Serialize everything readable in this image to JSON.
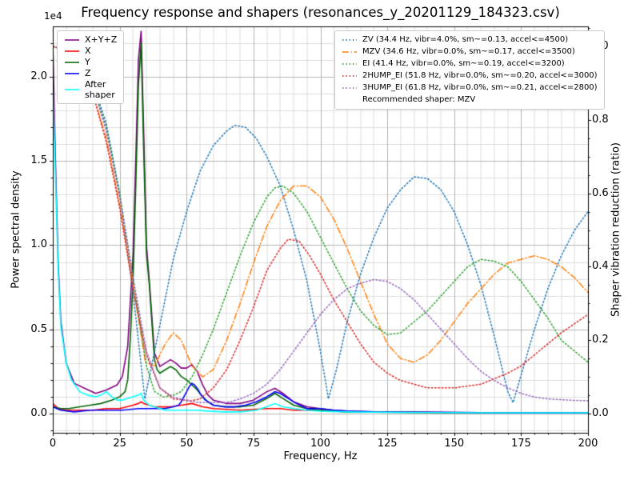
{
  "title": "Frequency response and shapers (resonances_y_20201129_184323.csv)",
  "offset_label": "1e4",
  "xlabel": "Frequency, Hz",
  "ylabel_left": "Power spectral density",
  "ylabel_right": "Shaper vibration reduction (ratio)",
  "legend_psd": [
    {
      "label": "X+Y+Z",
      "color": "#800080",
      "dash": "solid"
    },
    {
      "label": "X",
      "color": "#ff0000",
      "dash": "solid"
    },
    {
      "label": "Y",
      "color": "#006400",
      "dash": "solid"
    },
    {
      "label": "Z",
      "color": "#0000ff",
      "dash": "solid"
    },
    {
      "label": "After\nshaper",
      "color": "#00ffff",
      "dash": "solid"
    }
  ],
  "legend_shapers_footer": "Recommended shaper: MZV",
  "chart_data": {
    "type": "line",
    "xlim": [
      0,
      200
    ],
    "ylim_left": [
      -0.114,
      2.299
    ],
    "ylim_right": [
      -0.0523,
      1.0546
    ],
    "xticks": [
      0,
      25,
      50,
      75,
      100,
      125,
      150,
      175,
      200
    ],
    "xtick_labels": [
      "0",
      "25",
      "50",
      "75",
      "100",
      "125",
      "150",
      "175",
      "200"
    ],
    "yticks_left": [
      0.0,
      0.5,
      1.0,
      1.5,
      2.0
    ],
    "ytick_labels_left": [
      "0.0",
      "0.5",
      "1.0",
      "1.5",
      "2.0"
    ],
    "yticks_right": [
      0.0,
      0.2,
      0.4,
      0.6,
      0.8,
      1.0
    ],
    "ytick_labels_right": [
      "0.0",
      "0.2",
      "0.4",
      "0.6",
      "0.8",
      "1.0"
    ],
    "grid": {
      "x_minor_step": 5,
      "y_minor_step_left": 0.1,
      "y_minor_step_right": 0.05
    },
    "psd_unit_scale": "1e4",
    "psd_series": [
      {
        "name": "X+Y+Z",
        "label": "X+Y+Z",
        "color": "#800080",
        "dash": "solid",
        "x": [
          0,
          1,
          2,
          3,
          5,
          8,
          12,
          16,
          20,
          24,
          26,
          28,
          30,
          31,
          32,
          33,
          34,
          35,
          36,
          37,
          38,
          40,
          42,
          44,
          46,
          48,
          50,
          52,
          54,
          56,
          58,
          60,
          65,
          70,
          75,
          80,
          83,
          86,
          90,
          95,
          100,
          105,
          110,
          120,
          140,
          170,
          200
        ],
        "y": [
          2.2,
          1.5,
          0.9,
          0.55,
          0.3,
          0.18,
          0.15,
          0.12,
          0.14,
          0.17,
          0.22,
          0.4,
          0.95,
          1.5,
          2.1,
          2.27,
          1.65,
          1.0,
          0.8,
          0.58,
          0.36,
          0.28,
          0.3,
          0.32,
          0.3,
          0.27,
          0.27,
          0.29,
          0.25,
          0.17,
          0.11,
          0.08,
          0.06,
          0.06,
          0.08,
          0.13,
          0.15,
          0.12,
          0.07,
          0.04,
          0.03,
          0.02,
          0.015,
          0.01,
          0.008,
          0.005,
          0.005
        ]
      },
      {
        "name": "X",
        "label": "X",
        "color": "#ff0000",
        "dash": "solid",
        "x": [
          0,
          2,
          5,
          10,
          15,
          20,
          25,
          30,
          32,
          33,
          34,
          36,
          38,
          40,
          44,
          48,
          52,
          56,
          60,
          70,
          80,
          85,
          90,
          100,
          110,
          130,
          160,
          200
        ],
        "y": [
          0.06,
          0.03,
          0.02,
          0.02,
          0.02,
          0.03,
          0.03,
          0.05,
          0.06,
          0.07,
          0.06,
          0.05,
          0.04,
          0.04,
          0.04,
          0.05,
          0.06,
          0.04,
          0.03,
          0.02,
          0.03,
          0.03,
          0.02,
          0.02,
          0.01,
          0.008,
          0.005,
          0.005
        ]
      },
      {
        "name": "Y",
        "label": "Y",
        "color": "#006400",
        "dash": "solid",
        "x": [
          0,
          3,
          6,
          10,
          14,
          18,
          22,
          25,
          27,
          28,
          29,
          30,
          31,
          32,
          33,
          34,
          35,
          36,
          37,
          38,
          39,
          40,
          42,
          44,
          46,
          48,
          50,
          52,
          54,
          56,
          58,
          60,
          65,
          70,
          75,
          80,
          83,
          86,
          90,
          95,
          100,
          110,
          120,
          140,
          170,
          200
        ],
        "y": [
          0.04,
          0.03,
          0.03,
          0.04,
          0.05,
          0.06,
          0.08,
          0.1,
          0.13,
          0.2,
          0.45,
          0.8,
          1.35,
          1.95,
          2.2,
          1.55,
          0.95,
          0.78,
          0.55,
          0.32,
          0.26,
          0.24,
          0.26,
          0.28,
          0.26,
          0.22,
          0.2,
          0.17,
          0.14,
          0.1,
          0.07,
          0.05,
          0.04,
          0.04,
          0.05,
          0.09,
          0.12,
          0.09,
          0.05,
          0.03,
          0.02,
          0.01,
          0.008,
          0.006,
          0.005,
          0.005
        ]
      },
      {
        "name": "Z",
        "label": "Z",
        "color": "#0000ff",
        "dash": "solid",
        "x": [
          0,
          3,
          8,
          14,
          20,
          26,
          32,
          38,
          42,
          45,
          47,
          48,
          49,
          50,
          51,
          52,
          53,
          54,
          55,
          57,
          60,
          64,
          68,
          72,
          76,
          80,
          82,
          83,
          85,
          88,
          91,
          95,
          100,
          105,
          110,
          120,
          140,
          170,
          200
        ],
        "y": [
          0.04,
          0.02,
          0.01,
          0.02,
          0.02,
          0.02,
          0.03,
          0.03,
          0.03,
          0.04,
          0.05,
          0.07,
          0.1,
          0.13,
          0.16,
          0.18,
          0.17,
          0.15,
          0.12,
          0.08,
          0.05,
          0.04,
          0.04,
          0.05,
          0.07,
          0.1,
          0.12,
          0.13,
          0.12,
          0.09,
          0.06,
          0.03,
          0.03,
          0.02,
          0.015,
          0.01,
          0.008,
          0.005,
          0.005
        ]
      },
      {
        "name": "After shaper",
        "label": "After\nshaper",
        "color": "#00ffff",
        "dash": "solid",
        "x": [
          0,
          1,
          2,
          3,
          5,
          7,
          10,
          13,
          16,
          18,
          20,
          22,
          24,
          26,
          28,
          30,
          32,
          33,
          34,
          36,
          38,
          42,
          46,
          50,
          54,
          58,
          64,
          70,
          76,
          80,
          83,
          86,
          90,
          95,
          100,
          110,
          120,
          140,
          170,
          200
        ],
        "y": [
          1.97,
          1.4,
          0.85,
          0.52,
          0.3,
          0.2,
          0.13,
          0.11,
          0.1,
          0.11,
          0.13,
          0.1,
          0.08,
          0.08,
          0.09,
          0.1,
          0.11,
          0.12,
          0.08,
          0.05,
          0.04,
          0.02,
          0.02,
          0.02,
          0.02,
          0.015,
          0.01,
          0.01,
          0.02,
          0.04,
          0.06,
          0.04,
          0.03,
          0.02,
          0.015,
          0.01,
          0.008,
          0.006,
          0.005,
          0.005
        ]
      }
    ],
    "shaper_series": [
      {
        "name": "ZV",
        "label": "ZV (34.4 Hz, vibr=4.0%, sm~=0.13, accel<=4500)",
        "color": "#1f77b4",
        "dash": "dotted",
        "x": [
          0,
          5,
          10,
          15,
          20,
          25,
          30,
          34.4,
          40,
          45,
          50,
          55,
          60,
          65,
          68,
          72,
          76,
          80,
          85,
          90,
          95,
          100,
          103,
          106,
          110,
          115,
          120,
          125,
          130,
          135,
          140,
          145,
          150,
          155,
          160,
          165,
          170,
          172,
          176,
          180,
          185,
          190,
          195,
          200
        ],
        "y": [
          1.0,
          0.99,
          0.96,
          0.9,
          0.79,
          0.6,
          0.33,
          0.04,
          0.24,
          0.42,
          0.55,
          0.66,
          0.73,
          0.77,
          0.785,
          0.78,
          0.75,
          0.7,
          0.62,
          0.5,
          0.36,
          0.17,
          0.04,
          0.12,
          0.25,
          0.38,
          0.48,
          0.56,
          0.61,
          0.645,
          0.64,
          0.61,
          0.55,
          0.46,
          0.35,
          0.21,
          0.06,
          0.03,
          0.13,
          0.23,
          0.34,
          0.43,
          0.5,
          0.55
        ]
      },
      {
        "name": "MZV",
        "label": "MZV (34.6 Hz, vibr=0.0%, sm~=0.17, accel<=3500)",
        "color": "#ff7f0e",
        "dash": "dashdot",
        "x": [
          0,
          5,
          10,
          15,
          20,
          25,
          30,
          34.6,
          38,
          42,
          45,
          48,
          52,
          56,
          60,
          65,
          70,
          75,
          80,
          85,
          90,
          95,
          100,
          105,
          110,
          115,
          120,
          125,
          130,
          135,
          140,
          145,
          150,
          155,
          160,
          165,
          170,
          175,
          180,
          185,
          190,
          195,
          200
        ],
        "y": [
          1.0,
          0.99,
          0.95,
          0.87,
          0.75,
          0.57,
          0.35,
          0.14,
          0.13,
          0.19,
          0.22,
          0.2,
          0.13,
          0.1,
          0.12,
          0.2,
          0.3,
          0.41,
          0.51,
          0.58,
          0.62,
          0.62,
          0.59,
          0.53,
          0.45,
          0.36,
          0.27,
          0.19,
          0.15,
          0.14,
          0.16,
          0.2,
          0.25,
          0.3,
          0.34,
          0.38,
          0.41,
          0.42,
          0.43,
          0.42,
          0.4,
          0.37,
          0.33
        ]
      },
      {
        "name": "EI",
        "label": "EI (41.4 Hz, vibr=0.0%, sm~=0.19, accel<=3200)",
        "color": "#2ca02c",
        "dash": "dotted",
        "x": [
          0,
          5,
          10,
          15,
          20,
          25,
          30,
          35,
          38,
          41.4,
          45,
          48,
          52,
          56,
          60,
          65,
          70,
          75,
          80,
          83,
          86,
          90,
          95,
          100,
          105,
          110,
          115,
          120,
          125,
          130,
          135,
          140,
          145,
          150,
          155,
          160,
          165,
          170,
          175,
          180,
          185,
          190,
          200
        ],
        "y": [
          1.0,
          0.99,
          0.96,
          0.89,
          0.78,
          0.6,
          0.37,
          0.13,
          0.06,
          0.045,
          0.05,
          0.06,
          0.1,
          0.16,
          0.23,
          0.33,
          0.43,
          0.52,
          0.59,
          0.615,
          0.62,
          0.6,
          0.55,
          0.48,
          0.41,
          0.34,
          0.28,
          0.24,
          0.215,
          0.22,
          0.25,
          0.28,
          0.32,
          0.36,
          0.4,
          0.42,
          0.415,
          0.4,
          0.36,
          0.31,
          0.26,
          0.2,
          0.14
        ]
      },
      {
        "name": "2HUMP_EI",
        "label": "2HUMP_EI (51.8 Hz, vibr=0.0%, sm~=0.20, accel<=3000)",
        "color": "#d62728",
        "dash": "dotted",
        "x": [
          0,
          5,
          10,
          15,
          20,
          25,
          30,
          35,
          40,
          45,
          51.8,
          55,
          60,
          65,
          70,
          75,
          80,
          85,
          88,
          92,
          96,
          100,
          105,
          110,
          115,
          120,
          125,
          130,
          135,
          140,
          145,
          150,
          155,
          160,
          165,
          170,
          175,
          180,
          185,
          190,
          195,
          200
        ],
        "y": [
          1.0,
          0.99,
          0.95,
          0.87,
          0.74,
          0.56,
          0.34,
          0.16,
          0.07,
          0.04,
          0.035,
          0.04,
          0.07,
          0.12,
          0.2,
          0.29,
          0.39,
          0.45,
          0.475,
          0.47,
          0.43,
          0.38,
          0.31,
          0.25,
          0.19,
          0.14,
          0.11,
          0.09,
          0.08,
          0.07,
          0.07,
          0.07,
          0.075,
          0.08,
          0.095,
          0.11,
          0.13,
          0.16,
          0.19,
          0.22,
          0.245,
          0.27
        ]
      },
      {
        "name": "3HUMP_EI",
        "label": "3HUMP_EI (61.8 Hz, vibr=0.0%, sm~=0.21, accel<=2800)",
        "color": "#9467bd",
        "dash": "dotted",
        "x": [
          0,
          5,
          10,
          15,
          20,
          25,
          30,
          35,
          40,
          45,
          50,
          55,
          61.8,
          65,
          70,
          75,
          80,
          85,
          90,
          95,
          100,
          105,
          110,
          115,
          120,
          125,
          130,
          135,
          140,
          145,
          150,
          155,
          160,
          165,
          170,
          175,
          180,
          185,
          190,
          195,
          200
        ],
        "y": [
          1.0,
          0.99,
          0.96,
          0.89,
          0.77,
          0.59,
          0.37,
          0.17,
          0.07,
          0.045,
          0.035,
          0.03,
          0.03,
          0.03,
          0.04,
          0.055,
          0.08,
          0.12,
          0.17,
          0.22,
          0.27,
          0.31,
          0.34,
          0.355,
          0.365,
          0.36,
          0.34,
          0.31,
          0.27,
          0.23,
          0.19,
          0.15,
          0.115,
          0.09,
          0.07,
          0.055,
          0.045,
          0.04,
          0.038,
          0.036,
          0.035
        ]
      }
    ]
  }
}
